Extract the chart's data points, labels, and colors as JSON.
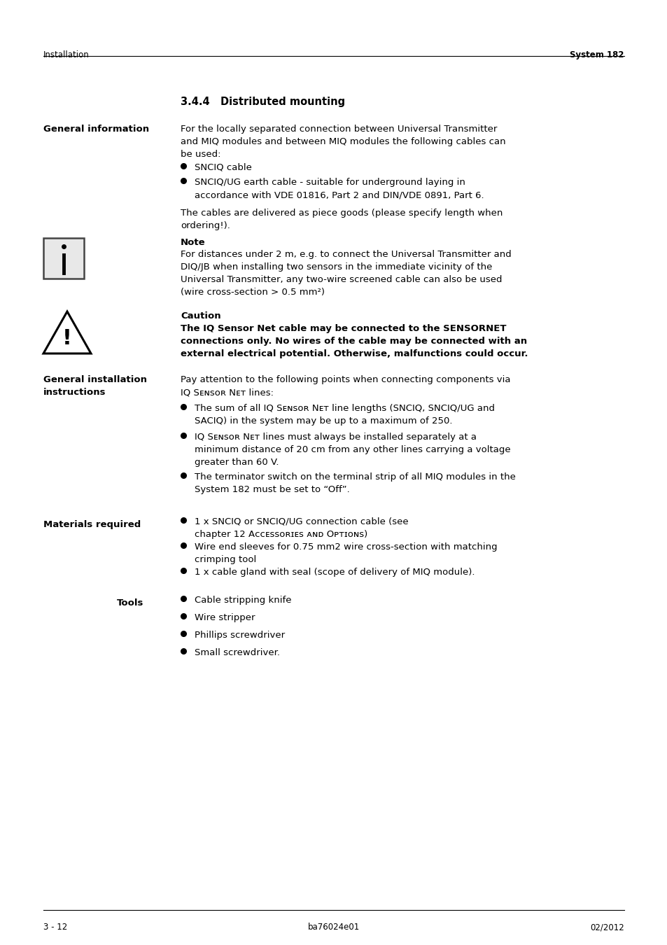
{
  "header_left": "Installation",
  "header_right": "System 182",
  "footer_left": "3 - 12",
  "footer_center": "ba76024e01",
  "footer_right": "02/2012",
  "bg_color": "#ffffff",
  "text_color": "#000000"
}
